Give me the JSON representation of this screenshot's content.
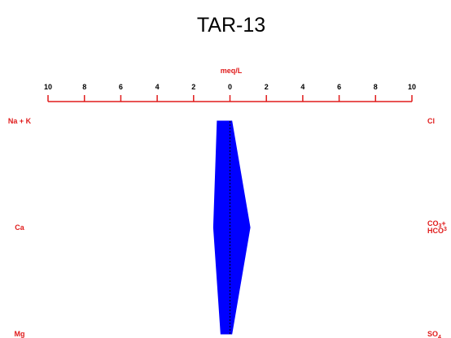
{
  "chart_data": {
    "type": "stiff",
    "title": "TAR-13",
    "scale_label": "meq/L",
    "tick_labels": [
      "10",
      "8",
      "6",
      "4",
      "2",
      "0",
      "2",
      "4",
      "6",
      "8",
      "10"
    ],
    "xlim": [
      -10,
      10
    ],
    "cations": [
      {
        "label": "Na + K",
        "value": 0.7
      },
      {
        "label": "Ca",
        "value": 0.9
      },
      {
        "label": "Mg",
        "value": 0.5
      }
    ],
    "anions": [
      {
        "label": "Cl",
        "value": 0.1,
        "lines": [
          "Cl"
        ]
      },
      {
        "label": "CO3+HCO3",
        "value": 1.1,
        "lines": [
          "CO",
          "3",
          "+",
          "HCO",
          "3"
        ]
      },
      {
        "label": "SO4",
        "value": 0.1,
        "lines": [
          "SO",
          "4"
        ]
      }
    ],
    "colors": {
      "polygon": "#0000ff",
      "axis": "#e01b1b",
      "center_line": "#000000",
      "title": "#000000"
    }
  }
}
